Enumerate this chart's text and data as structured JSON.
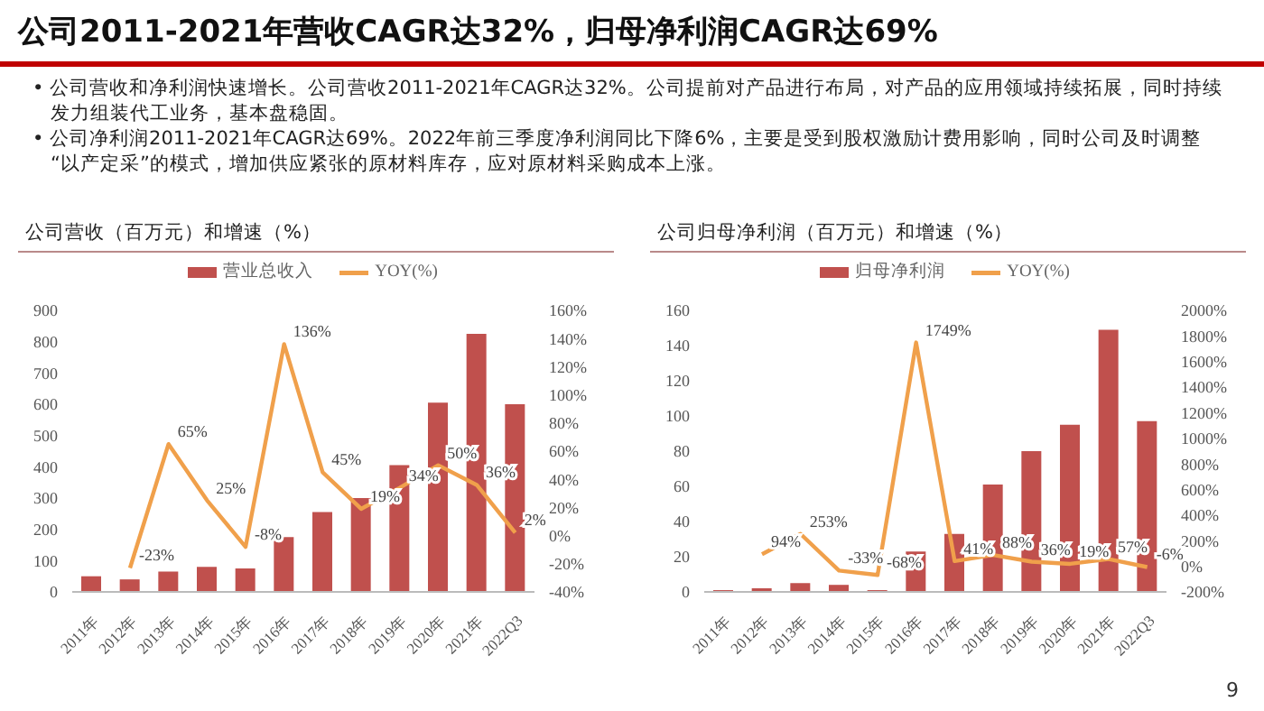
{
  "chart_data": [
    {
      "type": "other",
      "title": "公司2011-2021年营收CAGR达32%，归母净利润CAGR达69%",
      "annotations": [
        "• 公司营收和净利润快速增长。公司营收2011-2021年CAGR达32%。公司提前对产品进行布局，对产品的应用领域持续拓展，同时持续发力组装代工业务，基本盘稳固。",
        "• 公司净利润2011-2021年CAGR达69%。2022年前三季度净利润同比下降6%，主要是受到股权激励计费用影响，同时公司及时调整 “以产定采”的模式，增加供应紧张的原材料库存，应对原材料采购成本上涨。",
        "9"
      ]
    },
    {
      "type": "bar",
      "title": "公司营收（百万元）和增速（%）",
      "categories": [
        "2011年",
        "2012年",
        "2013年",
        "2014年",
        "2015年",
        "2016年",
        "2017年",
        "2018年",
        "2019年",
        "2020年",
        "2021年",
        "2022Q3"
      ],
      "series": [
        {
          "name": "营业总收入",
          "type": "bar",
          "color": "#c0504d",
          "values": [
            50,
            40,
            65,
            80,
            75,
            175,
            255,
            300,
            405,
            605,
            825,
            600
          ]
        },
        {
          "name": "YOY(%)",
          "type": "line",
          "axis": "y2",
          "color": "#f0a04b",
          "values": [
            null,
            -23,
            65,
            25,
            -8,
            136,
            45,
            19,
            34,
            50,
            36,
            2
          ],
          "value_labels": [
            null,
            "-23%",
            "65%",
            "25%",
            "-8%",
            "136%",
            "45%",
            "19%",
            "34%",
            "50%",
            "36%",
            "2%"
          ]
        }
      ],
      "ylim": [
        0,
        900
      ],
      "yticks": [
        0,
        100,
        200,
        300,
        400,
        500,
        600,
        700,
        800,
        900
      ],
      "y2lim": [
        -40,
        160
      ],
      "y2ticks": [
        {
          "value": -40,
          "label": "-40%"
        },
        {
          "value": -20,
          "label": "-20%"
        },
        {
          "value": 0,
          "label": "0%"
        },
        {
          "value": 20,
          "label": "20%"
        },
        {
          "value": 40,
          "label": "40%"
        },
        {
          "value": 60,
          "label": "60%"
        },
        {
          "value": 80,
          "label": "80%"
        },
        {
          "value": 100,
          "label": "100%"
        },
        {
          "value": 120,
          "label": "120%"
        },
        {
          "value": 140,
          "label": "140%"
        },
        {
          "value": 160,
          "label": "160%"
        }
      ],
      "legend": "top",
      "grid": false,
      "marker": "none"
    },
    {
      "type": "bar",
      "title": "公司归母净利润（百万元）和增速（%）",
      "categories": [
        "2011年",
        "2012年",
        "2013年",
        "2014年",
        "2015年",
        "2016年",
        "2017年",
        "2018年",
        "2019年",
        "2020年",
        "2021年",
        "2022Q3"
      ],
      "series": [
        {
          "name": "归母净利润",
          "type": "bar",
          "color": "#c0504d",
          "values": [
            1,
            2,
            5,
            4,
            1,
            23,
            33,
            61,
            80,
            95,
            149,
            97
          ]
        },
        {
          "name": "YOY(%)",
          "type": "line",
          "axis": "y2",
          "color": "#f0a04b",
          "values": [
            null,
            94,
            253,
            -33,
            -68,
            1749,
            41,
            88,
            36,
            19,
            57,
            -6
          ],
          "value_labels": [
            null,
            "94%",
            "253%",
            "-33%",
            "-68%",
            "1749%",
            "41%",
            "88%",
            "36%",
            "19%",
            "57%",
            "-6%"
          ]
        }
      ],
      "ylim": [
        0,
        160
      ],
      "yticks": [
        0,
        20,
        40,
        60,
        80,
        100,
        120,
        140,
        160
      ],
      "y2lim": [
        -200,
        2000
      ],
      "y2ticks": [
        {
          "value": -200,
          "label": "-200%"
        },
        {
          "value": 0,
          "label": "0%"
        },
        {
          "value": 200,
          "label": "200%"
        },
        {
          "value": 400,
          "label": "400%"
        },
        {
          "value": 600,
          "label": "600%"
        },
        {
          "value": 800,
          "label": "800%"
        },
        {
          "value": 1000,
          "label": "1000%"
        },
        {
          "value": 1200,
          "label": "1200%"
        },
        {
          "value": 1400,
          "label": "1400%"
        },
        {
          "value": 1600,
          "label": "1600%"
        },
        {
          "value": 1800,
          "label": "1800%"
        },
        {
          "value": 2000,
          "label": "2000%"
        }
      ],
      "legend": "top",
      "grid": false,
      "marker": "none"
    }
  ]
}
